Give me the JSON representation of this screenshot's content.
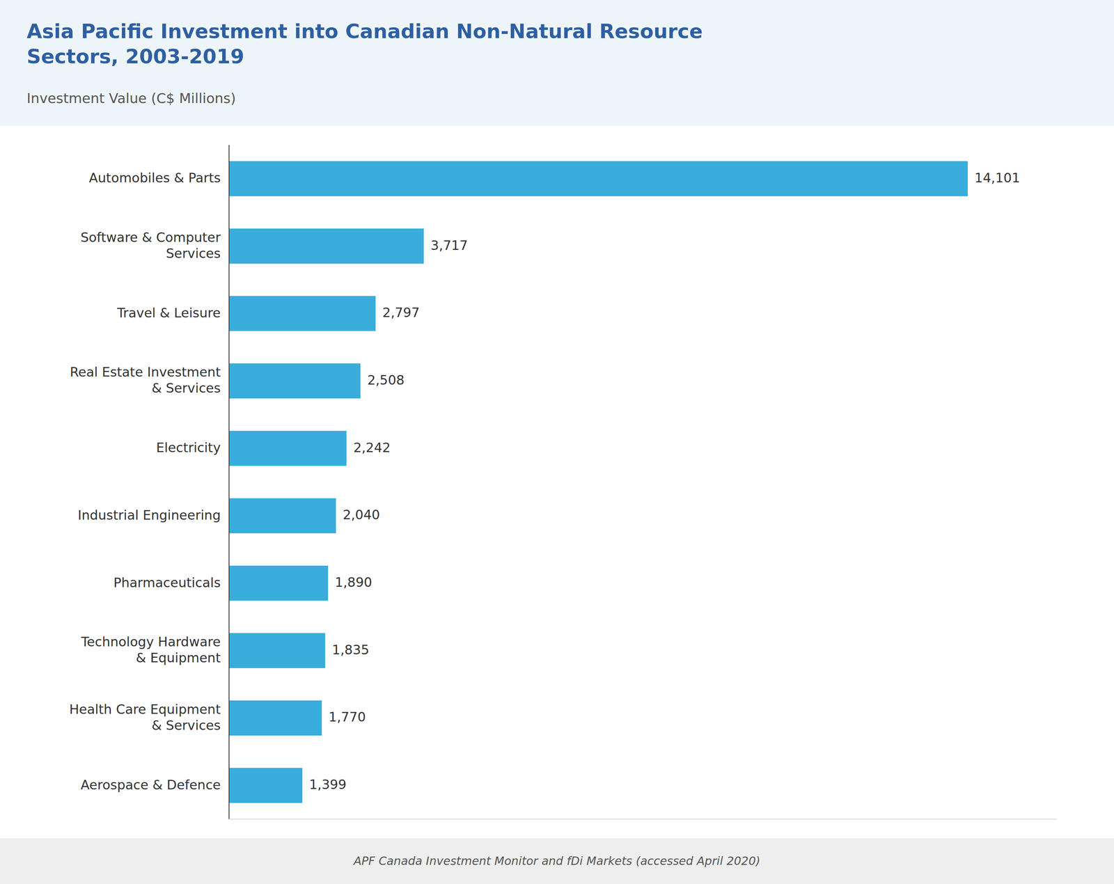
{
  "chart_data": {
    "type": "bar",
    "orientation": "horizontal",
    "title": "Asia Pacific Investment into Canadian Non-Natural Resource\nSectors, 2003-2019",
    "subtitle": "Investment Value (C$ Millions)",
    "annotations": [
      "APF Canada Investment Monitor and fDi Markets (accessed April 2020)"
    ],
    "categories": [
      "Automobiles & Parts",
      "Software & Computer\nServices",
      "Travel & Leisure",
      "Real Estate Investment\n& Services",
      "Electricity",
      "Industrial Engineering",
      "Pharmaceuticals",
      "Technology Hardware\n& Equipment",
      "Health Care Equipment\n& Services",
      "Aerospace & Defence"
    ],
    "values": [
      14101,
      3717,
      2797,
      2508,
      2242,
      2040,
      1890,
      1835,
      1770,
      1399
    ],
    "value_labels": [
      "14,101",
      "3,717",
      "2,797",
      "2,508",
      "2,242",
      "2,040",
      "1,890",
      "1,835",
      "1,770",
      "1,399"
    ],
    "data_labels": true,
    "color": "#3AACDC",
    "xlim": [
      0,
      15800
    ],
    "tick_labels": "y",
    "grid": false
  }
}
